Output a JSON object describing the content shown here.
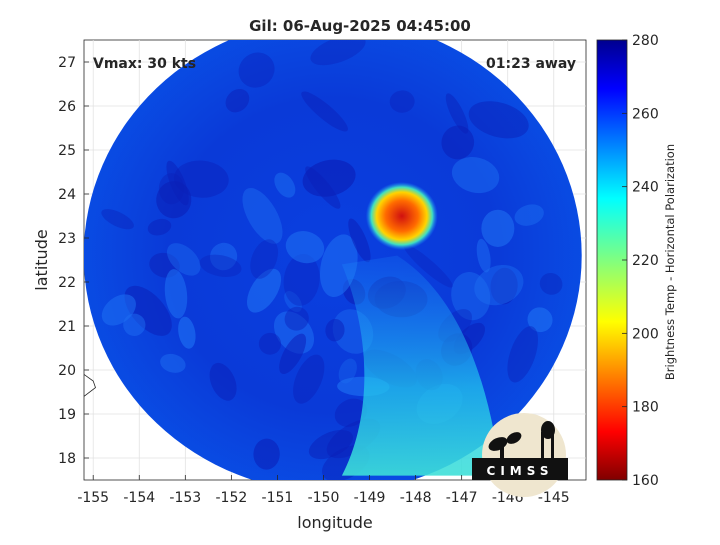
{
  "chart_data": {
    "type": "heatmap",
    "title": "Gil: 06-Aug-2025 04:45:00",
    "xlabel": "longitude",
    "ylabel": "latitude",
    "xlim": [
      -155.2,
      -144.3
    ],
    "ylim": [
      17.5,
      27.5
    ],
    "x_ticks": [
      -155,
      -154,
      -153,
      -152,
      -151,
      -150,
      -149,
      -148,
      -147,
      -146,
      -145
    ],
    "y_ticks": [
      18,
      19,
      20,
      21,
      22,
      23,
      24,
      25,
      26,
      27
    ],
    "grid": true,
    "annotations": {
      "vmax": "Vmax: 30 kts",
      "time_offset": "01:23 away"
    },
    "colorbar": {
      "label": "Brightness Temp - Horizontal Polarization",
      "min": 160,
      "max": 280,
      "ticks": [
        160,
        180,
        200,
        220,
        240,
        260,
        280
      ],
      "colormap": "jet"
    },
    "swath": {
      "center_lon": -149.8,
      "center_lat": 22.6,
      "note": "circular sensor footprint"
    },
    "features": [
      {
        "kind": "convective_core",
        "lon": -148.3,
        "lat": 23.5,
        "value": 185
      },
      {
        "kind": "warm_band",
        "lon": -148.0,
        "lat": 19.0,
        "value": 235
      }
    ]
  },
  "logo": {
    "text": "CIMSS"
  }
}
